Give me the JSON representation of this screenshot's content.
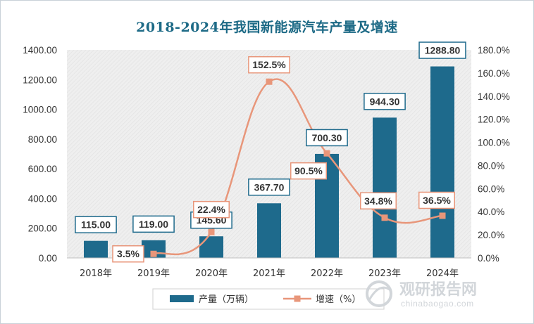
{
  "chart_data": {
    "type": "bar+line",
    "title": "2018-2024年我国新能源汽车产量及增速",
    "categories": [
      "2018年",
      "2019年",
      "2020年",
      "2021年",
      "2022年",
      "2023年",
      "2024年"
    ],
    "series": [
      {
        "name": "产量（万辆）",
        "type": "bar",
        "axis": "left",
        "values": [
          115.0,
          119.0,
          145.6,
          367.7,
          700.3,
          944.3,
          1288.8
        ],
        "labels": [
          "115.00",
          "119.00",
          "145.60",
          "367.70",
          "700.30",
          "944.30",
          "1288.80"
        ]
      },
      {
        "name": "增速（%）",
        "type": "line",
        "axis": "right",
        "values": [
          null,
          3.5,
          22.4,
          152.5,
          90.5,
          34.8,
          36.5
        ],
        "labels": [
          "",
          "3.5%",
          "22.4%",
          "152.5%",
          "90.5%",
          "34.8%",
          "36.5%"
        ]
      }
    ],
    "left_axis": {
      "ylim": [
        0,
        1400
      ],
      "ticks": [
        "0.00",
        "200.00",
        "400.00",
        "600.00",
        "800.00",
        "1000.00",
        "1200.00",
        "1400.00"
      ]
    },
    "right_axis": {
      "ylim": [
        0,
        180
      ],
      "ticks": [
        "0.0%",
        "20.0%",
        "40.0%",
        "60.0%",
        "80.0%",
        "100.0%",
        "120.0%",
        "140.0%",
        "160.0%",
        "180.0%"
      ]
    },
    "legend_position": "bottom",
    "grid": false,
    "colors": {
      "bar": "#1e6a8c",
      "line": "#e8967a",
      "title": "#1d6a86",
      "plot_bg": "#eeeeee"
    }
  },
  "watermark": {
    "text": "观研报告网",
    "url": "chinabaogao.com"
  }
}
